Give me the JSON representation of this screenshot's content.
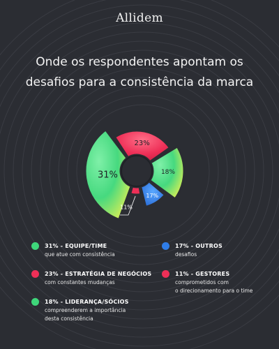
{
  "brand": {
    "logo_text": "Allidem"
  },
  "heading": {
    "line1": "Onde os respondentes apontam os",
    "line2": "desafios para a consistência da marca"
  },
  "colors": {
    "background": "#2b2d33",
    "green": "#3ed67a",
    "red": "#ee2f57",
    "blue": "#2f7de8"
  },
  "chart_data": {
    "type": "pie",
    "title": "Onde os respondentes apontam os desafios para a consistência da marca",
    "unit": "%",
    "slices": [
      {
        "label": "Equipe/Time",
        "value": 31,
        "display": "31%",
        "color": "#3ed67a"
      },
      {
        "label": "Estratégia de Negócios",
        "value": 23,
        "display": "23%",
        "color": "#ee2f57"
      },
      {
        "label": "Liderança/Sócios",
        "value": 18,
        "display": "18%",
        "color": "#3ed67a"
      },
      {
        "label": "Outros",
        "value": 17,
        "display": "17%",
        "color": "#2f7de8"
      },
      {
        "label": "Gestores",
        "value": 11,
        "display": "11%",
        "color": "#ee2f57"
      }
    ]
  },
  "legend": [
    {
      "head": "31% - EQUIPE/TIME",
      "desc": "que atue com consistência",
      "color": "#3ed67a"
    },
    {
      "head": "23% - ESTRATÉGIA DE NEGÓCIOS",
      "desc": "com constantes mudanças",
      "color": "#ee2f57"
    },
    {
      "head": "18% - LIDERANÇA/SÓCIOS",
      "desc": "compreenderem a importância\ndesta consistência",
      "color": "#3ed67a"
    },
    {
      "head": "17% - OUTROS",
      "desc": "desafios",
      "color": "#2f7de8"
    },
    {
      "head": "11% - GESTORES",
      "desc": "comprometidos com\no direcionamento para o time",
      "color": "#ee2f57"
    }
  ]
}
